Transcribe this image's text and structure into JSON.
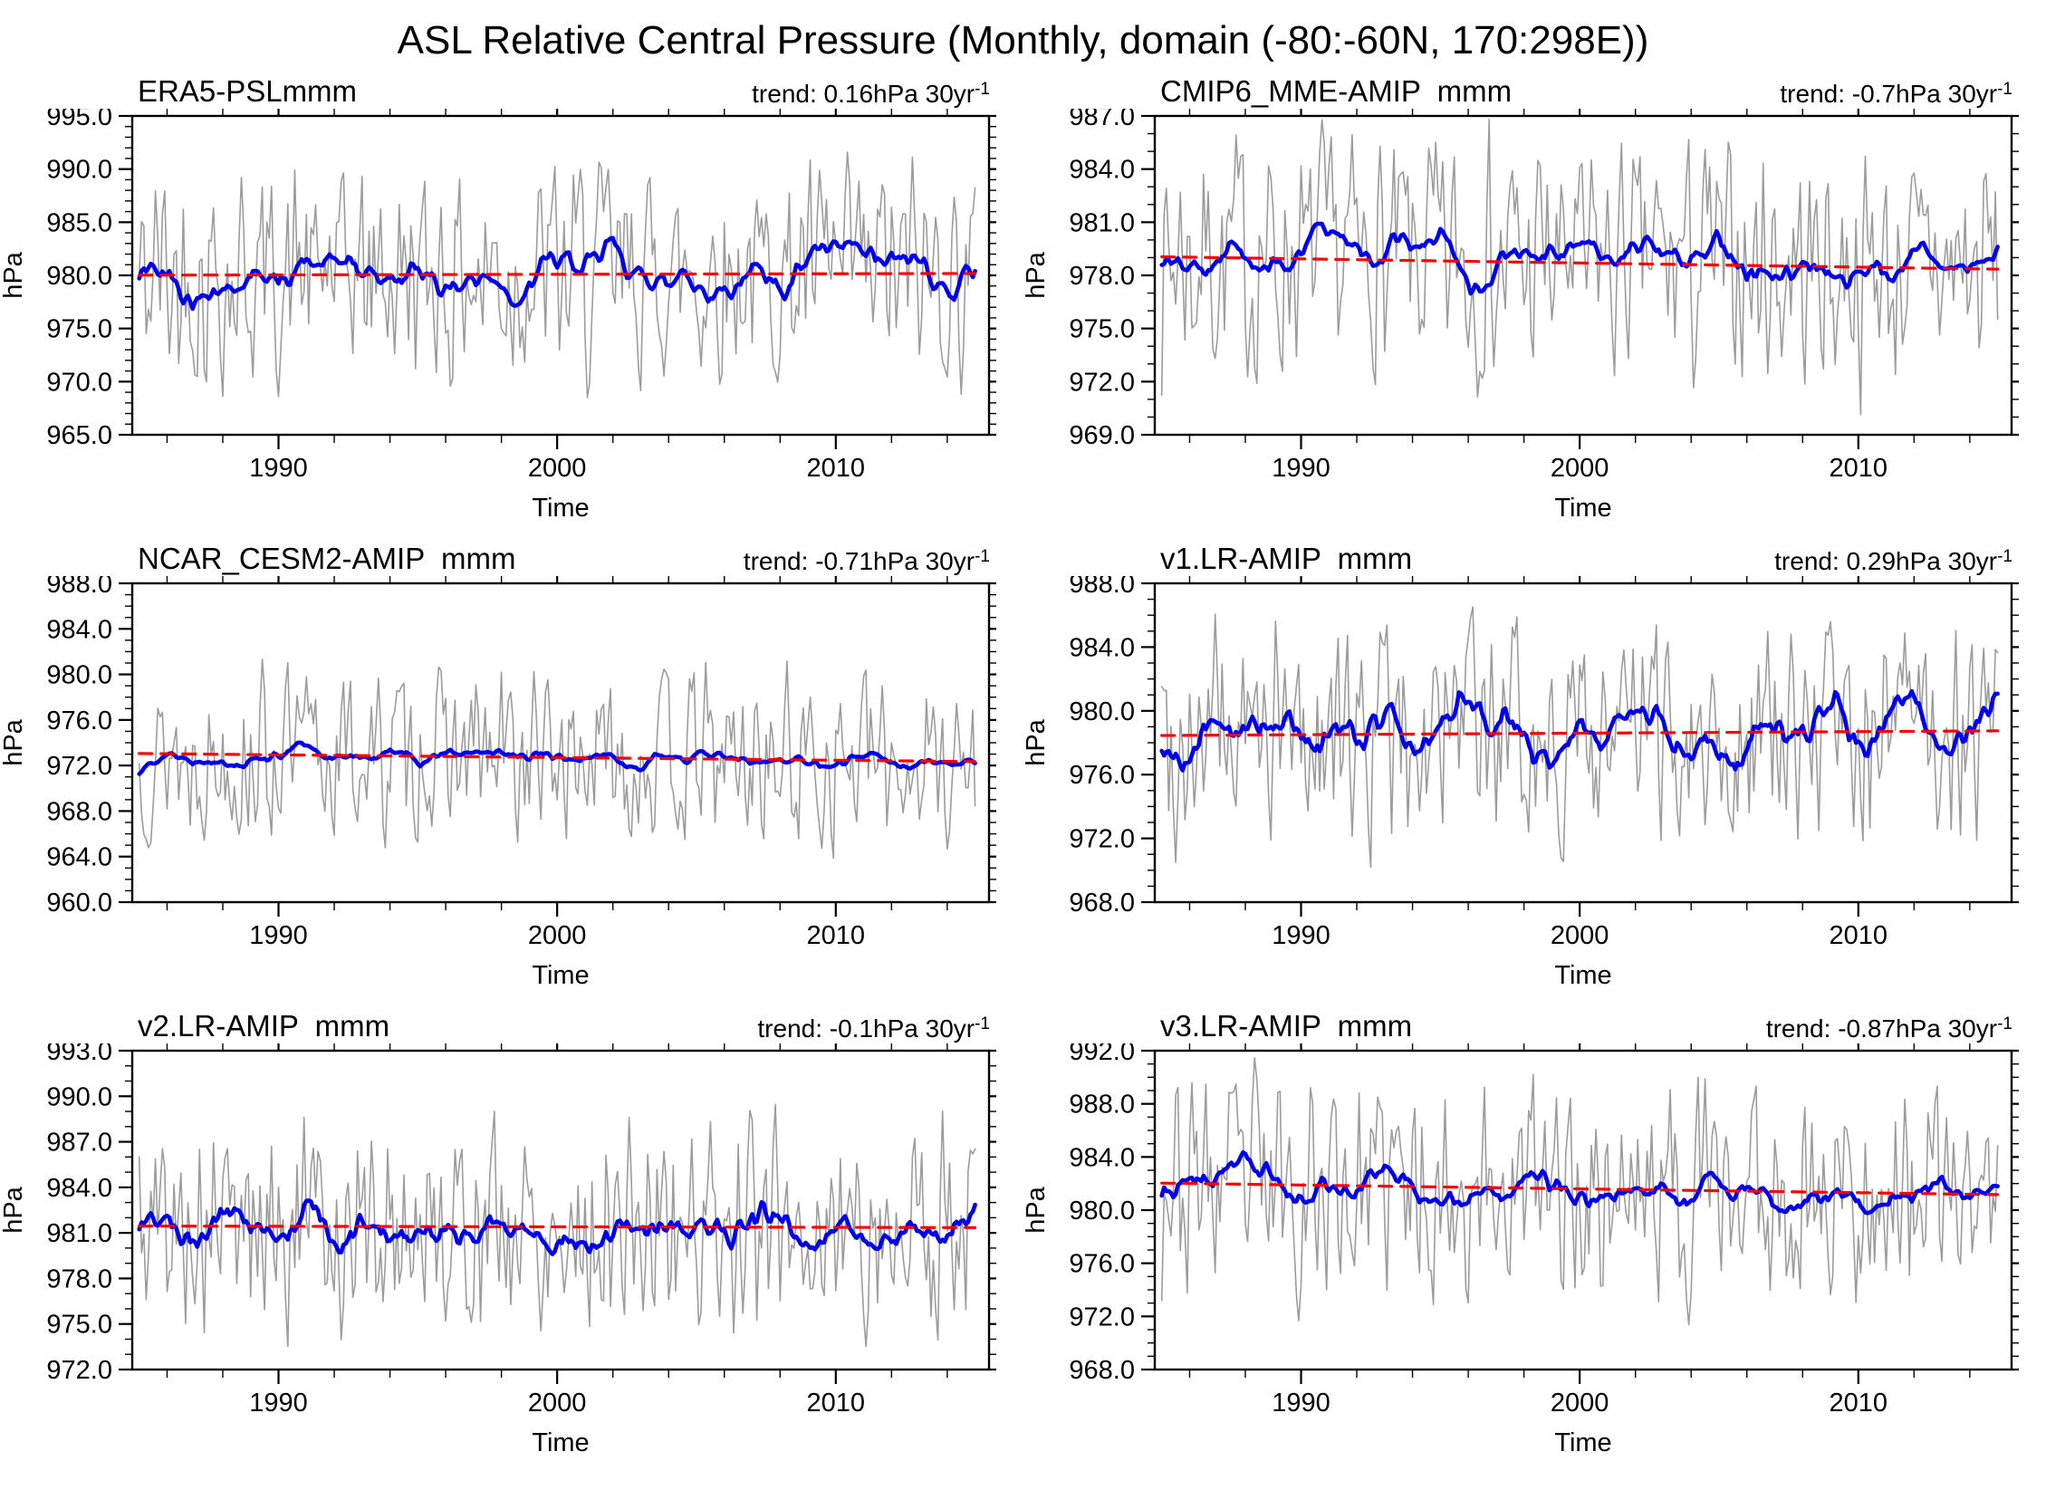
{
  "figure_title": "ASL Relative Central Pressure (Monthly, domain (-80:-60N, 170:298E))",
  "colors": {
    "background": "#ffffff",
    "monthly_line": "#9c9c9c",
    "smoothed_line": "#0000ee",
    "trend_line": "#ff0000",
    "axis": "#000000",
    "text": "#000000"
  },
  "chart_common": {
    "xlabel": "Time",
    "ylabel": "hPa",
    "xlim": [
      1984.75,
      2015.5
    ],
    "xticks": [
      1990,
      2000,
      2010
    ],
    "xticklabels": [
      "1990",
      "2000",
      "2010"
    ],
    "x_minor_step_years": 2,
    "y_minor_step_hpa": 1,
    "x_data_range": [
      1985,
      2015
    ],
    "points_per_series": 361,
    "grid": "off",
    "legend": "none"
  },
  "chart_data": [
    {
      "type": "line",
      "title": "ERA5-PSLmmm",
      "trend_text": "trend: 0.16hPa 30yr",
      "trend_sup": "-1",
      "trend_hpa_per_30yr": 0.16,
      "mean_hpa": 980.1,
      "ylim": [
        965.0,
        995.0
      ],
      "yticks": [
        965.0,
        970.0,
        975.0,
        980.0,
        985.0,
        990.0,
        995.0
      ],
      "monthly_amp_hpa": 10.5,
      "smoothed_amp_hpa": 3.4,
      "seed": 42
    },
    {
      "type": "line",
      "title": "CMIP6_MME-AMIP  mmm",
      "trend_text": "trend: -0.7hPa 30yr",
      "trend_sup": "-1",
      "trend_hpa_per_30yr": -0.7,
      "mean_hpa": 978.7,
      "ylim": [
        969.0,
        987.0
      ],
      "yticks": [
        969.0,
        972.0,
        975.0,
        978.0,
        981.0,
        984.0,
        987.0
      ],
      "monthly_amp_hpa": 6.8,
      "smoothed_amp_hpa": 2.0,
      "seed": 7
    },
    {
      "type": "line",
      "title": "NCAR_CESM2-AMIP  mmm",
      "trend_text": "trend: -0.71hPa 30yr",
      "trend_sup": "-1",
      "trend_hpa_per_30yr": -0.71,
      "mean_hpa": 972.7,
      "ylim": [
        960.0,
        988.0
      ],
      "yticks": [
        960.0,
        964.0,
        968.0,
        972.0,
        976.0,
        980.0,
        984.0,
        988.0
      ],
      "monthly_amp_hpa": 7.5,
      "smoothed_amp_hpa": 1.8,
      "seed": 13
    },
    {
      "type": "line",
      "title": "v1.LR-AMIP  mmm",
      "trend_text": "trend: 0.29hPa 30yr",
      "trend_sup": "-1",
      "trend_hpa_per_30yr": 0.29,
      "mean_hpa": 978.6,
      "ylim": [
        968.0,
        988.0
      ],
      "yticks": [
        968.0,
        972.0,
        976.0,
        980.0,
        984.0,
        988.0
      ],
      "monthly_amp_hpa": 7.0,
      "smoothed_amp_hpa": 2.6,
      "seed": 99
    },
    {
      "type": "line",
      "title": "v2.LR-AMIP  mmm",
      "trend_text": "trend: -0.1hPa 30yr",
      "trend_sup": "-1",
      "trend_hpa_per_30yr": -0.1,
      "mean_hpa": 981.4,
      "ylim": [
        972.0,
        993.0
      ],
      "yticks": [
        972.0,
        975.0,
        978.0,
        981.0,
        984.0,
        987.0,
        990.0,
        993.0
      ],
      "monthly_amp_hpa": 7.0,
      "smoothed_amp_hpa": 1.8,
      "seed": 5
    },
    {
      "type": "line",
      "title": "v3.LR-AMIP  mmm",
      "trend_text": "trend: -0.87hPa 30yr",
      "trend_sup": "-1",
      "trend_hpa_per_30yr": -0.87,
      "mean_hpa": 981.6,
      "ylim": [
        968.0,
        992.0
      ],
      "yticks": [
        968.0,
        972.0,
        976.0,
        980.0,
        984.0,
        988.0,
        992.0
      ],
      "monthly_amp_hpa": 8.2,
      "smoothed_amp_hpa": 2.4,
      "seed": 23
    }
  ]
}
